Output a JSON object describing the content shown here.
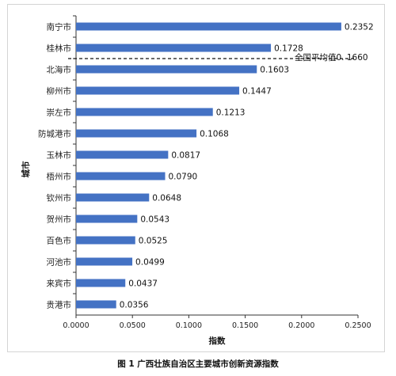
{
  "chart_data": {
    "type": "bar",
    "orientation": "horizontal",
    "categories": [
      "南宁市",
      "桂林市",
      "北海市",
      "柳州市",
      "崇左市",
      "防城港市",
      "玉林市",
      "梧州市",
      "钦州市",
      "贺州市",
      "百色市",
      "河池市",
      "来宾市",
      "贵港市"
    ],
    "values": [
      0.2352,
      0.1728,
      0.1603,
      0.1447,
      0.1213,
      0.1068,
      0.0817,
      0.079,
      0.0648,
      0.0543,
      0.0525,
      0.0499,
      0.0437,
      0.0356
    ],
    "value_labels": [
      "0.2352",
      "0.1728",
      "0.1603",
      "0.1447",
      "0.1213",
      "0.1068",
      "0.0817",
      "0.0790",
      "0.0648",
      "0.0543",
      "0.0525",
      "0.0499",
      "0.0437",
      "0.0356"
    ],
    "xlabel": "指数",
    "ylabel": "城市",
    "xlim": [
      0,
      0.25
    ],
    "xticks": [
      0,
      0.05,
      0.1,
      0.15,
      0.2,
      0.25
    ],
    "xtick_labels": [
      "0.0000",
      "0.0500",
      "0.1000",
      "0.1500",
      "0.2000",
      "0.2500"
    ],
    "reference_line": {
      "value_label": "全国平均值0. 1660",
      "style": "dashed",
      "between_categories": [
        "桂林市",
        "北海市"
      ]
    },
    "bar_color": "#4472c4",
    "grid": false,
    "legend": "none"
  },
  "caption": "图 1 广西壮族自治区主要城市创新资源指数"
}
